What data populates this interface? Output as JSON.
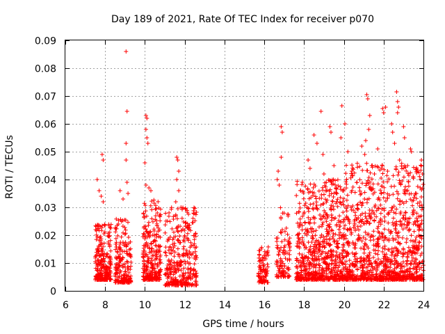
{
  "chart_data": {
    "type": "scatter",
    "title": "Day 189 of 2021, Rate Of TEC Index for receiver p070",
    "xlabel": "GPS time / hours",
    "ylabel": "ROTI / TECUs",
    "xlim": [
      6,
      24
    ],
    "ylim": [
      0,
      0.09
    ],
    "xticks": [
      6,
      8,
      10,
      12,
      14,
      16,
      18,
      20,
      22,
      24
    ],
    "yticks": [
      0,
      0.01,
      0.02,
      0.03,
      0.04,
      0.05,
      0.06,
      0.07,
      0.08,
      0.09
    ],
    "xtick_labels": [
      "6",
      "8",
      "10",
      "12",
      "14",
      "16",
      "18",
      "20",
      "22",
      "24"
    ],
    "ytick_labels": [
      "0",
      "0.01",
      "0.02",
      "0.03",
      "0.04",
      "0.05",
      "0.06",
      "0.07",
      "0.08",
      "0.09"
    ],
    "grid": true,
    "marker": "+",
    "color": "#ff0000",
    "series": [
      {
        "name": "ROTI",
        "points": [
          [
            9.05,
            0.086
          ],
          [
            9.1,
            0.0645
          ],
          [
            9.05,
            0.053
          ],
          [
            9.05,
            0.047
          ],
          [
            9.1,
            0.039
          ],
          [
            9.15,
            0.035
          ],
          [
            7.85,
            0.049
          ],
          [
            7.9,
            0.047
          ],
          [
            7.6,
            0.04
          ],
          [
            7.7,
            0.036
          ],
          [
            7.8,
            0.034
          ],
          [
            7.9,
            0.032
          ],
          [
            8.75,
            0.036
          ],
          [
            8.9,
            0.033
          ],
          [
            10.05,
            0.063
          ],
          [
            10.1,
            0.062
          ],
          [
            10.05,
            0.058
          ],
          [
            10.1,
            0.055
          ],
          [
            10.15,
            0.053
          ],
          [
            10.0,
            0.046
          ],
          [
            10.05,
            0.038
          ],
          [
            10.2,
            0.037
          ],
          [
            10.3,
            0.036
          ],
          [
            11.6,
            0.048
          ],
          [
            11.65,
            0.047
          ],
          [
            11.7,
            0.043
          ],
          [
            11.6,
            0.04
          ],
          [
            11.7,
            0.036
          ],
          [
            11.55,
            0.032
          ],
          [
            16.85,
            0.059
          ],
          [
            16.9,
            0.057
          ],
          [
            16.85,
            0.048
          ],
          [
            16.7,
            0.043
          ],
          [
            16.65,
            0.04
          ],
          [
            16.75,
            0.038
          ],
          [
            18.5,
            0.056
          ],
          [
            18.65,
            0.053
          ],
          [
            18.85,
            0.0645
          ],
          [
            18.95,
            0.049
          ],
          [
            19.3,
            0.059
          ],
          [
            19.35,
            0.057
          ],
          [
            19.9,
            0.0665
          ],
          [
            20.05,
            0.06
          ],
          [
            19.85,
            0.055
          ],
          [
            20.2,
            0.05
          ],
          [
            20.9,
            0.052
          ],
          [
            21.05,
            0.049
          ],
          [
            21.15,
            0.0705
          ],
          [
            21.2,
            0.069
          ],
          [
            21.3,
            0.063
          ],
          [
            21.25,
            0.058
          ],
          [
            21.1,
            0.054
          ],
          [
            21.7,
            0.051
          ],
          [
            21.95,
            0.0655
          ],
          [
            22.1,
            0.066
          ],
          [
            22.0,
            0.064
          ],
          [
            22.4,
            0.06
          ],
          [
            22.45,
            0.057
          ],
          [
            22.55,
            0.053
          ],
          [
            22.65,
            0.0715
          ],
          [
            22.7,
            0.068
          ],
          [
            22.75,
            0.066
          ],
          [
            22.7,
            0.064
          ],
          [
            23.0,
            0.059
          ],
          [
            23.05,
            0.055
          ],
          [
            23.35,
            0.051
          ],
          [
            23.4,
            0.05
          ],
          [
            23.9,
            0.047
          ],
          [
            23.95,
            0.042
          ],
          [
            23.85,
            0.04
          ],
          [
            18.2,
            0.047
          ],
          [
            18.3,
            0.044
          ],
          [
            19.5,
            0.045
          ],
          [
            19.0,
            0.042
          ],
          [
            20.4,
            0.043
          ],
          [
            21.4,
            0.045
          ],
          [
            21.9,
            0.044
          ],
          [
            22.2,
            0.043
          ],
          [
            22.8,
            0.047
          ],
          [
            23.2,
            0.045
          ]
        ]
      }
    ],
    "clusters": [
      {
        "x0": 7.5,
        "x1": 8.3,
        "y_lo": 0.004,
        "y_hi": 0.024,
        "count": 260
      },
      {
        "x0": 8.5,
        "x1": 9.3,
        "y_lo": 0.003,
        "y_hi": 0.026,
        "count": 200
      },
      {
        "x0": 9.9,
        "x1": 10.8,
        "y_lo": 0.004,
        "y_hi": 0.033,
        "count": 280
      },
      {
        "x0": 11.0,
        "x1": 12.6,
        "y_lo": 0.002,
        "y_hi": 0.03,
        "count": 340
      },
      {
        "x0": 15.7,
        "x1": 16.2,
        "y_lo": 0.003,
        "y_hi": 0.016,
        "count": 90
      },
      {
        "x0": 16.6,
        "x1": 17.3,
        "y_lo": 0.005,
        "y_hi": 0.03,
        "count": 110
      },
      {
        "x0": 17.6,
        "x1": 20.0,
        "y_lo": 0.004,
        "y_hi": 0.04,
        "count": 700
      },
      {
        "x0": 20.0,
        "x1": 24.0,
        "y_lo": 0.004,
        "y_hi": 0.046,
        "count": 1100
      }
    ]
  }
}
